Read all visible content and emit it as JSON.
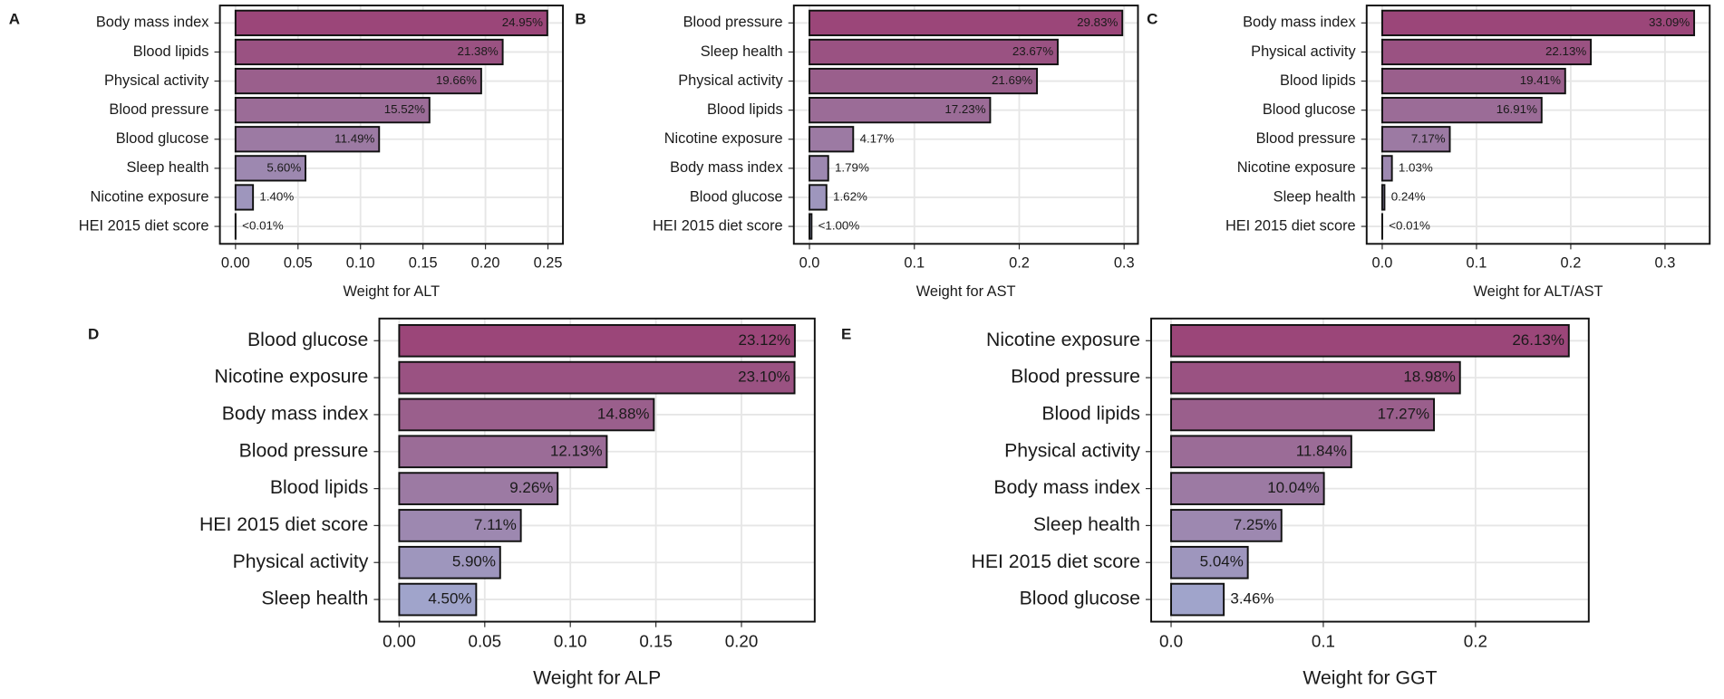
{
  "chart_data": [
    {
      "type": "barh",
      "label": "A",
      "xlabel": "Weight for ALT",
      "categories": [
        "Body mass index",
        "Blood lipids",
        "Physical activity",
        "Blood pressure",
        "Blood glucose",
        "Sleep health",
        "Nicotine exposure",
        "HEI 2015 diet score"
      ],
      "values": [
        0.2495,
        0.2138,
        0.1966,
        0.1552,
        0.1149,
        0.056,
        0.014,
        5e-05
      ],
      "value_labels": [
        "24.95%",
        "21.38%",
        "19.66%",
        "15.52%",
        "11.49%",
        "5.60%",
        "1.40%",
        "<0.01%"
      ],
      "colors": [
        "#9b4679",
        "#9a5282",
        "#9a5f8c",
        "#9b6c97",
        "#9c7aa3",
        "#9d88b0",
        "#9e96bd",
        "#a0a4cb"
      ],
      "xlim": [
        -0.0125,
        0.262
      ],
      "xticks": [
        {
          "value": 0,
          "label": "0.00"
        },
        0.05,
        {
          "value": 0.1,
          "label": "0.10"
        },
        0.15,
        {
          "value": 0.2,
          "label": "0.20"
        },
        0.25
      ],
      "grid": true
    },
    {
      "type": "barh",
      "label": "B",
      "xlabel": "Weight for AST",
      "categories": [
        "Blood pressure",
        "Sleep health",
        "Physical activity",
        "Blood lipids",
        "Nicotine exposure",
        "Body mass index",
        "Blood glucose",
        "HEI 2015 diet score"
      ],
      "values": [
        0.2983,
        0.2367,
        0.2169,
        0.1723,
        0.0417,
        0.0179,
        0.0162,
        0.002
      ],
      "value_labels": [
        "29.83%",
        "23.67%",
        "21.69%",
        "17.23%",
        "4.17%",
        "1.79%",
        "1.62%",
        "<1.00%"
      ],
      "colors": [
        "#9b4679",
        "#9a5282",
        "#9a5f8c",
        "#9b6c97",
        "#9c7aa3",
        "#9d88b0",
        "#9e96bd",
        "#a0a4cb"
      ],
      "xlim": [
        -0.0149,
        0.3132
      ],
      "xticks": [
        {
          "value": 0,
          "label": "0.0"
        },
        0.1,
        0.2,
        0.3
      ],
      "grid": true
    },
    {
      "type": "barh",
      "label": "C",
      "xlabel": "Weight for ALT/AST",
      "categories": [
        "Body mass index",
        "Physical activity",
        "Blood lipids",
        "Blood glucose",
        "Blood pressure",
        "Nicotine exposure",
        "Sleep health",
        "HEI 2015 diet score"
      ],
      "values": [
        0.3309,
        0.2213,
        0.1941,
        0.1691,
        0.0717,
        0.0103,
        0.0024,
        5e-05
      ],
      "value_labels": [
        "33.09%",
        "22.13%",
        "19.41%",
        "16.91%",
        "7.17%",
        "1.03%",
        "0.24%",
        "<0.01%"
      ],
      "colors": [
        "#9b4679",
        "#9a5282",
        "#9a5f8c",
        "#9b6c97",
        "#9c7aa3",
        "#9d88b0",
        "#9e96bd",
        "#a0a4cb"
      ],
      "xlim": [
        -0.0165,
        0.3474
      ],
      "xticks": [
        {
          "value": 0,
          "label": "0.0"
        },
        0.1,
        0.2,
        0.3
      ],
      "grid": true
    },
    {
      "type": "barh",
      "label": "D",
      "xlabel": "Weight for ALP",
      "categories": [
        "Blood glucose",
        "Nicotine exposure",
        "Body mass index",
        "Blood pressure",
        "Blood lipids",
        "HEI 2015 diet score",
        "Physical activity",
        "Sleep health"
      ],
      "values": [
        0.2312,
        0.231,
        0.1488,
        0.1213,
        0.0926,
        0.0711,
        0.059,
        0.045
      ],
      "value_labels": [
        "23.12%",
        "23.10%",
        "14.88%",
        "12.13%",
        "9.26%",
        "7.11%",
        "5.90%",
        "4.50%"
      ],
      "colors": [
        "#9b4679",
        "#9a5282",
        "#9a5f8c",
        "#9b6c97",
        "#9c7aa3",
        "#9d88b0",
        "#9e96bd",
        "#a0a4cb"
      ],
      "xlim": [
        -0.0116,
        0.2428
      ],
      "xticks": [
        {
          "value": 0,
          "label": "0.00"
        },
        0.05,
        {
          "value": 0.1,
          "label": "0.10"
        },
        0.15,
        {
          "value": 0.2,
          "label": "0.20"
        }
      ],
      "grid": true
    },
    {
      "type": "barh",
      "label": "E",
      "xlabel": "Weight for GGT",
      "categories": [
        "Nicotine exposure",
        "Blood pressure",
        "Blood lipids",
        "Physical activity",
        "Body mass index",
        "Sleep health",
        "HEI 2015 diet score",
        "Blood glucose"
      ],
      "values": [
        0.2613,
        0.1898,
        0.1727,
        0.1184,
        0.1004,
        0.0725,
        0.0504,
        0.0346
      ],
      "value_labels": [
        "26.13%",
        "18.98%",
        "17.27%",
        "11.84%",
        "10.04%",
        "7.25%",
        "5.04%",
        "3.46%"
      ],
      "colors": [
        "#9b4679",
        "#9a5282",
        "#9a5f8c",
        "#9b6c97",
        "#9c7aa3",
        "#9d88b0",
        "#9e96bd",
        "#a0a4cb"
      ],
      "xlim": [
        -0.0131,
        0.2744
      ],
      "xticks": [
        {
          "value": 0,
          "label": "0.0"
        },
        0.1,
        0.2
      ],
      "grid": true
    }
  ]
}
